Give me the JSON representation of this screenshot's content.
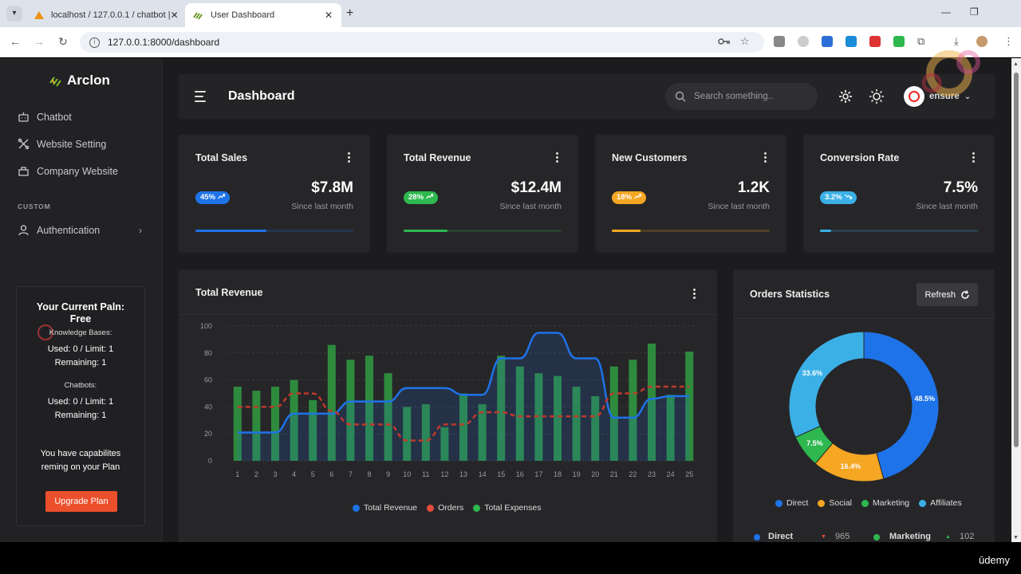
{
  "browser": {
    "tabs": [
      {
        "label": "localhost / 127.0.0.1 / chatbot |",
        "active": false
      },
      {
        "label": "User Dashboard",
        "active": true
      }
    ],
    "url": "127.0.0.1:8000/dashboard"
  },
  "sidebar": {
    "brand": "Arclon",
    "items": [
      {
        "label": "Chatbot",
        "icon": "bot-icon"
      },
      {
        "label": "Website Setting",
        "icon": "settings-icon"
      },
      {
        "label": "Company Website",
        "icon": "building-icon"
      }
    ],
    "section_label": "CUSTOM",
    "custom_items": [
      {
        "label": "Authentication",
        "icon": "user-icon"
      }
    ],
    "plan": {
      "title": "Your Current Paln:",
      "plan_name": "Free",
      "kb_label": "Knowledge Bases:",
      "kb_used": "Used: 0 / Limit: 1",
      "kb_remaining": "Remaining: 1",
      "chatbots_label": "Chatbots:",
      "cb_used": "Used: 0 / Limit: 1",
      "cb_remaining": "Remaining: 1",
      "note": "You have capabilites reming on your Plan",
      "upgrade_label": "Upgrade Plan"
    }
  },
  "header": {
    "title": "Dashboard",
    "search_placeholder": "Search something..",
    "username": "ensure"
  },
  "stats": [
    {
      "title": "Total Sales",
      "badge": "45%",
      "trend": "up",
      "value": "$7.8M",
      "sub": "Since last month",
      "color": "#1e73e8",
      "progress": 0.45
    },
    {
      "title": "Total Revenue",
      "badge": "28%",
      "trend": "up",
      "value": "$12.4M",
      "sub": "Since last month",
      "color": "#2eb84f",
      "progress": 0.28
    },
    {
      "title": "New Customers",
      "badge": "18%",
      "trend": "up",
      "value": "1.2K",
      "sub": "Since last month",
      "color": "#f5a623",
      "progress": 0.18
    },
    {
      "title": "Conversion Rate",
      "badge": "3.2%",
      "trend": "down",
      "value": "7.5%",
      "sub": "Since last month",
      "color": "#3bb0e6",
      "progress": 0.07
    }
  ],
  "revenue_panel": {
    "title": "Total Revenue"
  },
  "orders_panel": {
    "title": "Orders Statistics",
    "refresh_label": "Refresh",
    "summary": [
      {
        "label": "Direct",
        "value": "965",
        "trend": "down",
        "color": "#1e73e8"
      },
      {
        "label": "Marketing",
        "value": "102",
        "trend": "up",
        "color": "#2eb84f"
      }
    ]
  },
  "chart_data": [
    {
      "type": "bar",
      "x": [
        1,
        2,
        3,
        4,
        5,
        6,
        7,
        8,
        9,
        10,
        11,
        12,
        13,
        14,
        15,
        16,
        17,
        18,
        19,
        20,
        21,
        22,
        23,
        24,
        25
      ],
      "ylim": [
        0,
        100
      ],
      "yticks": [
        0,
        20,
        40,
        60,
        80,
        100
      ],
      "series": [
        {
          "name": "Total Revenue",
          "type": "line",
          "color": "#1e73e8",
          "values": [
            21,
            21,
            21,
            35,
            35,
            35,
            44,
            44,
            44,
            54,
            54,
            54,
            49,
            49,
            76,
            76,
            95,
            95,
            76,
            76,
            32,
            32,
            46,
            48,
            48
          ]
        },
        {
          "name": "Orders",
          "type": "line",
          "dashed": true,
          "color": "#c0392b",
          "values": [
            40,
            40,
            40,
            50,
            50,
            37,
            27,
            27,
            27,
            15,
            15,
            27,
            27,
            36,
            36,
            33,
            33,
            33,
            33,
            33,
            50,
            50,
            55,
            55,
            55
          ]
        },
        {
          "name": "Total Expenses",
          "type": "bar",
          "color": "#2e8b3e",
          "values": [
            55,
            52,
            55,
            60,
            45,
            86,
            75,
            78,
            65,
            40,
            42,
            25,
            50,
            42,
            78,
            70,
            65,
            63,
            55,
            48,
            70,
            75,
            87,
            49,
            81
          ]
        }
      ]
    },
    {
      "type": "pie",
      "donut": true,
      "categories": [
        "Direct",
        "Social",
        "Marketing",
        "Affiliates"
      ],
      "values": [
        48.5,
        16.4,
        7.5,
        33.6
      ],
      "labels": [
        "48.5%",
        "16.4%",
        "7.5%",
        "33.6%"
      ],
      "colors": [
        "#1e73e8",
        "#f5a623",
        "#2eb84f",
        "#3bb0e6"
      ],
      "legend": "bottom"
    }
  ],
  "footer": {
    "watermark": "ūdemy"
  }
}
